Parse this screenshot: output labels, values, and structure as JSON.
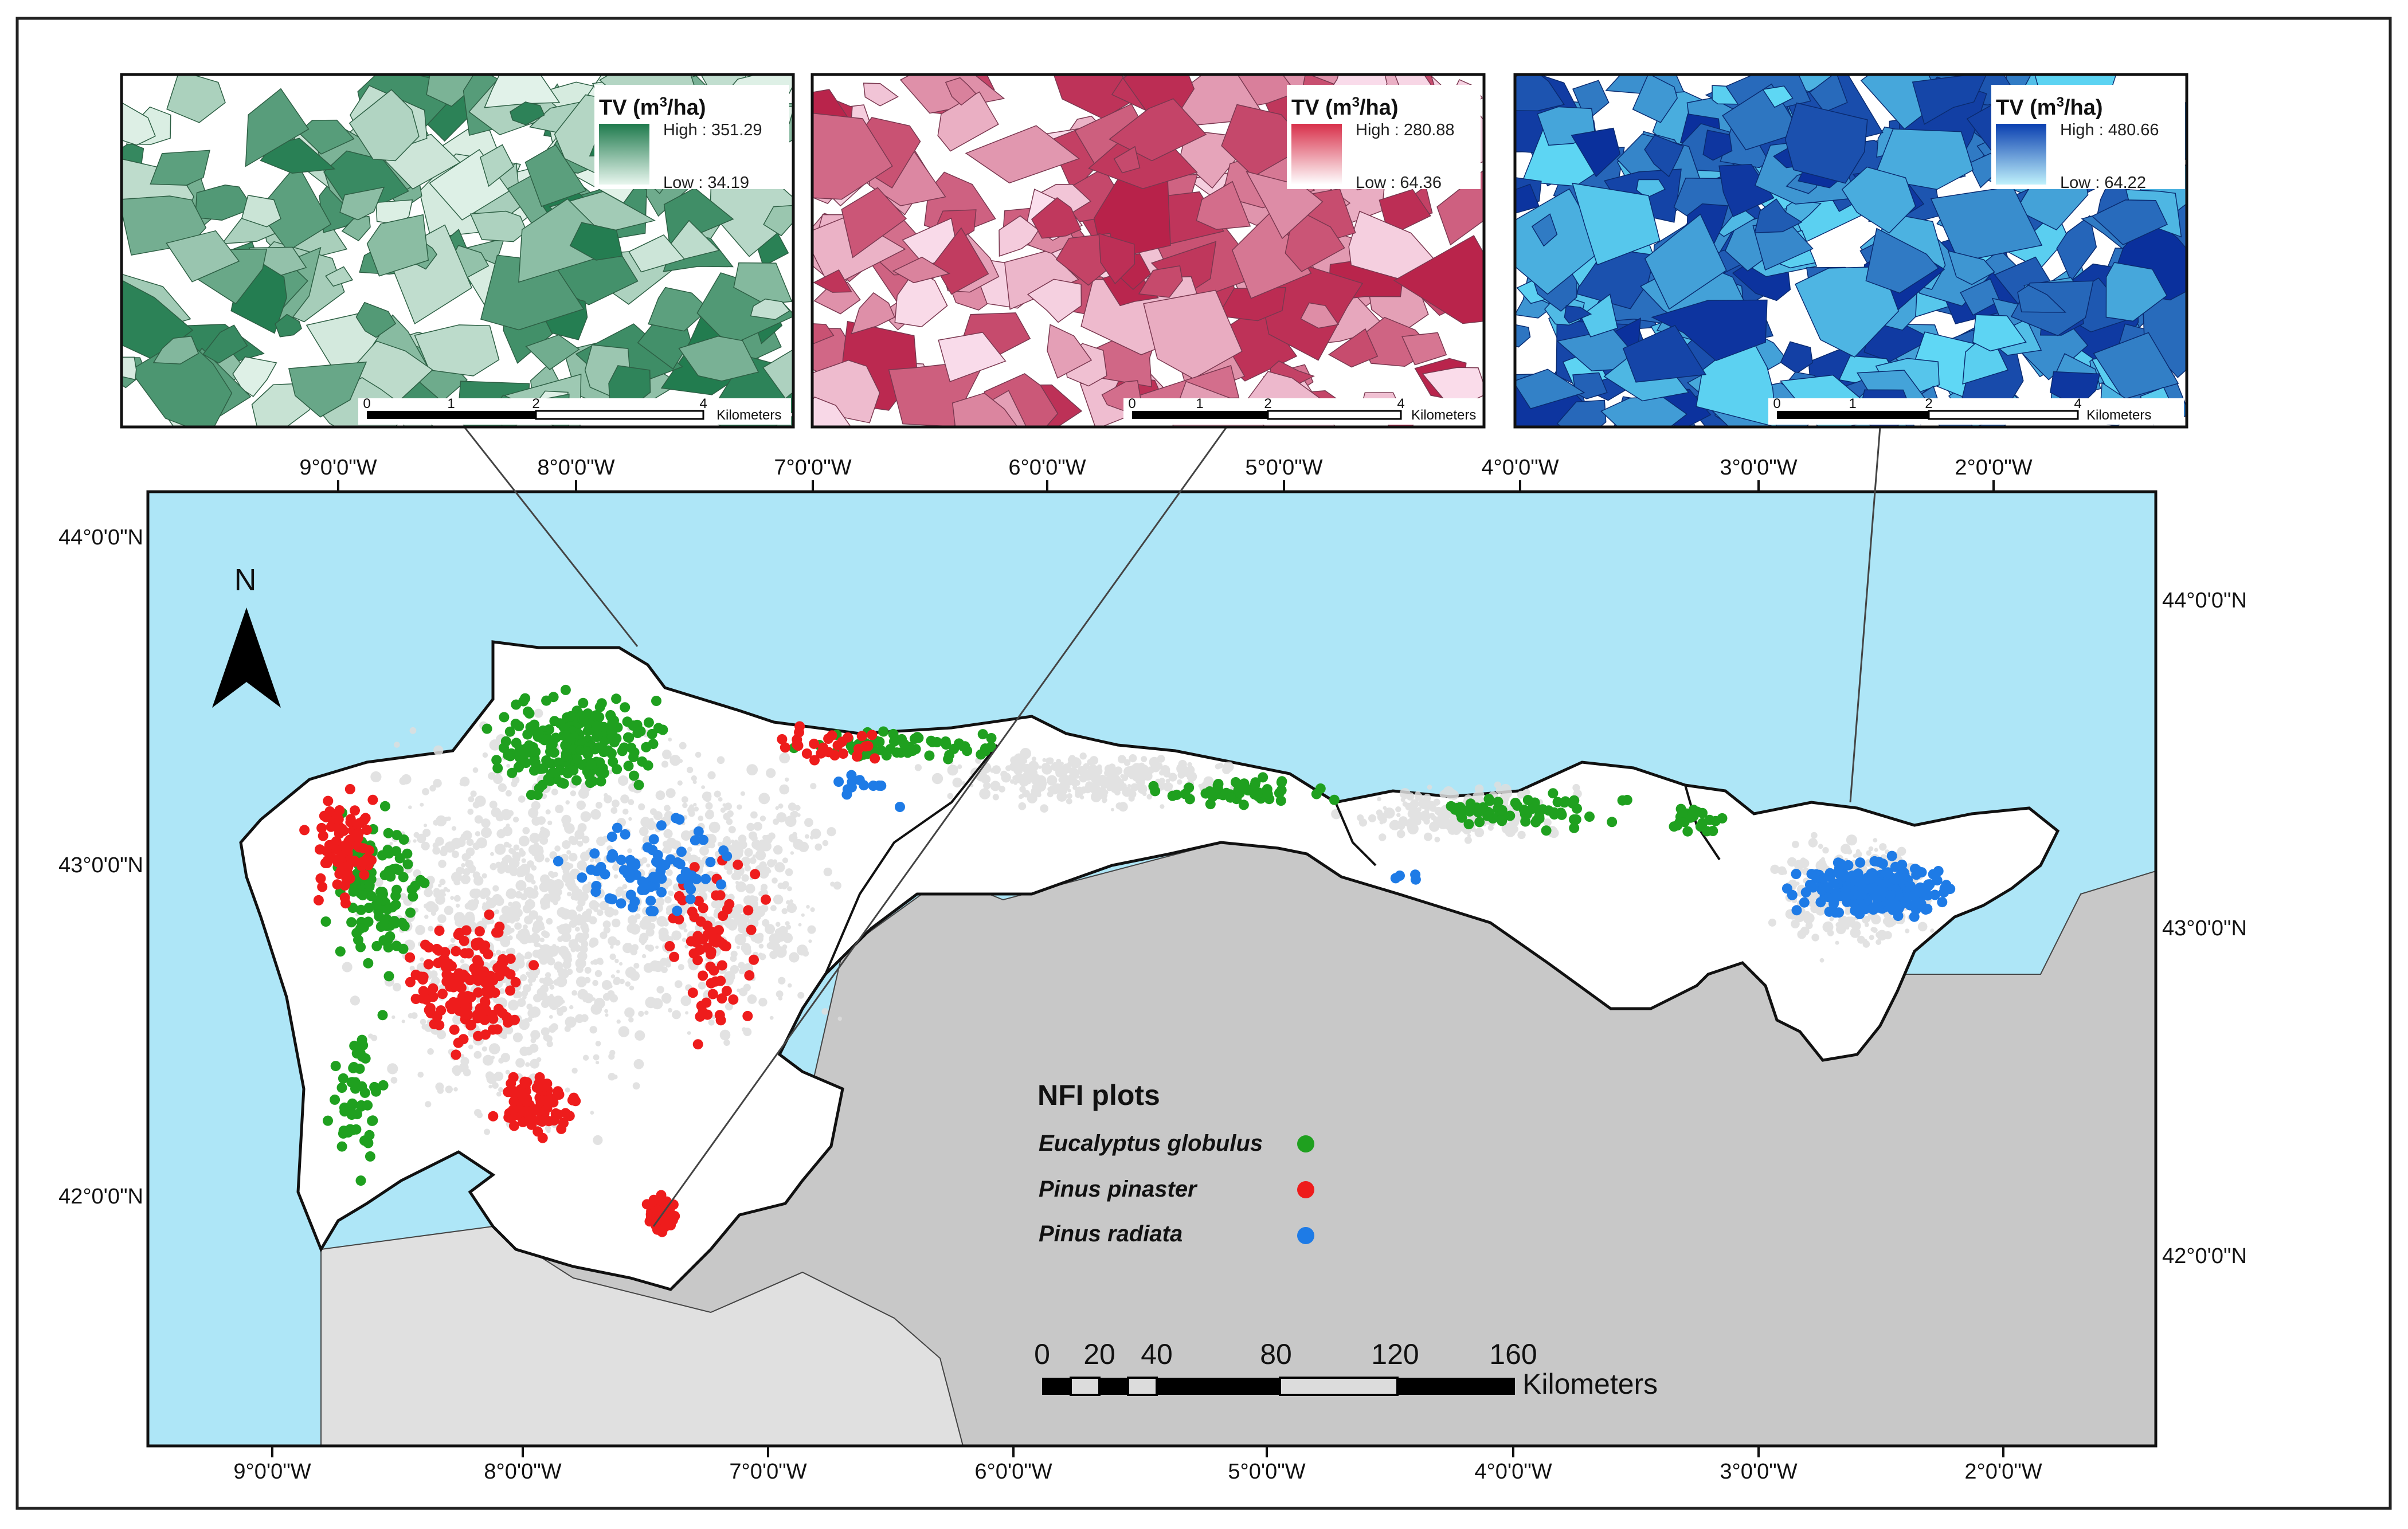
{
  "map": {
    "north_label": "N",
    "scale_bar": {
      "ticks": [
        "0",
        "20",
        "40",
        "80",
        "120",
        "160"
      ],
      "unit": "Kilometers"
    },
    "top_axis_labels": [
      "9°0'0\"W",
      "8°0'0\"W",
      "7°0'0\"W",
      "6°0'0\"W",
      "5°0'0\"W",
      "4°0'0\"W",
      "3°0'0\"W",
      "2°0'0\"W"
    ],
    "bottom_axis_labels": [
      "9°0'0\"W",
      "8°0'0\"W",
      "7°0'0\"W",
      "6°0'0\"W",
      "5°0'0\"W",
      "4°0'0\"W",
      "3°0'0\"W",
      "2°0'0\"W"
    ],
    "left_axis_labels": [
      "44°0'0\"N",
      "43°0'0\"N",
      "42°0'0\"N"
    ],
    "right_axis_labels": [
      "44°0'0\"N",
      "43°0'0\"N",
      "42°0'0\"N"
    ],
    "colors": {
      "sea": "#aee6f7",
      "land_outside": "#c8c8c8",
      "portugal": "#e0e0e0",
      "study_area": "#ffffff",
      "forest_mask": "#dedede",
      "eucalyptus": "#1fa01f",
      "pinaster": "#ee1c1c",
      "radiata": "#1e7be6"
    }
  },
  "legend": {
    "title": "NFI plots",
    "items": [
      {
        "label": "Eucalyptus globulus",
        "color": "#1fa01f"
      },
      {
        "label": "Pinus pinaster",
        "color": "#ee1c1c"
      },
      {
        "label": "Pinus radiata",
        "color": "#1e7be6"
      }
    ]
  },
  "insets": [
    {
      "title_prefix": "TV (m",
      "title_sup": "3",
      "title_suffix": "/ha)",
      "high": "High : 351.29",
      "low": "Low : 34.19",
      "scale_ticks": [
        "0",
        "1",
        "2",
        "4"
      ],
      "scale_unit": "Kilometers",
      "color_high": "#1f7a4d",
      "color_low": "#e3f3ea"
    },
    {
      "title_prefix": "TV (m",
      "title_sup": "3",
      "title_suffix": "/ha)",
      "high": "High : 280.88",
      "low": "Low : 64.36",
      "scale_ticks": [
        "0",
        "1",
        "2",
        "4"
      ],
      "scale_unit": "Kilometers",
      "color_high": "#b8224a",
      "color_low": "#fbe0ee"
    },
    {
      "title_prefix": "TV (m",
      "title_sup": "3",
      "title_suffix": "/ha)",
      "high": "High : 480.66",
      "low": "Low : 64.22",
      "scale_ticks": [
        "0",
        "1",
        "2",
        "4"
      ],
      "scale_unit": "Kilometers",
      "color_high": "#0a2f9c",
      "color_low": "#5fd8f5"
    }
  ]
}
